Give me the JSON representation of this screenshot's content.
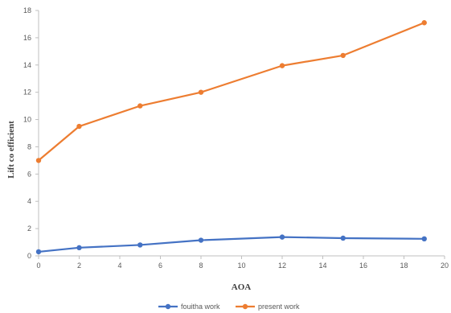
{
  "chart_data": {
    "type": "line",
    "title": "",
    "xlabel": "AOA",
    "ylabel": "Lift co efficient",
    "xlim": [
      0,
      20
    ],
    "ylim": [
      0,
      18
    ],
    "xticks": [
      0,
      2,
      4,
      6,
      8,
      10,
      12,
      14,
      16,
      18,
      20
    ],
    "yticks": [
      0,
      2,
      4,
      6,
      8,
      10,
      12,
      14,
      16,
      18
    ],
    "grid": false,
    "legend_position": "bottom",
    "series": [
      {
        "name": "fouitha work",
        "color": "#4472C4",
        "x": [
          0,
          2,
          5,
          8,
          12,
          15,
          19
        ],
        "y": [
          0.3,
          0.6,
          0.8,
          1.15,
          1.38,
          1.3,
          1.25
        ]
      },
      {
        "name": "present work",
        "color": "#ED7D31",
        "x": [
          0,
          2,
          5,
          8,
          12,
          15,
          19
        ],
        "y": [
          7.0,
          9.5,
          11.0,
          12.0,
          13.95,
          14.7,
          17.1
        ]
      }
    ]
  }
}
